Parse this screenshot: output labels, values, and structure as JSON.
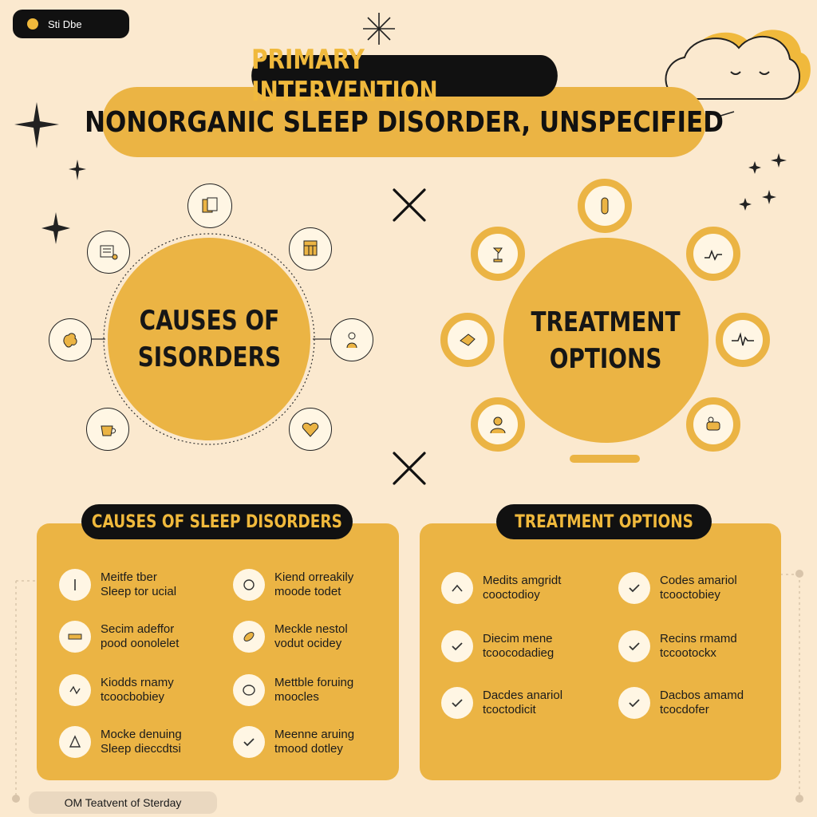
{
  "tag": {
    "label": "Sti Dbe"
  },
  "title": {
    "line1": "PRIMARY INTERVENTION",
    "line2": "NONORGANIC SLEEP DISORDER,  UNSPECIFIED"
  },
  "causes_circle": {
    "line1": "CAUSES OF",
    "line2": "SISORDERS"
  },
  "treatment_circle": {
    "line1": "TREATMENT",
    "line2": "OPTIONS"
  },
  "causes_panel": {
    "title": "CAUSES OF SLEEP DISORDERS",
    "items": [
      {
        "icon": "pill-icon",
        "l1": "Meitfe tber",
        "l2": "Sleep tor ucial"
      },
      {
        "icon": "circle-icon",
        "l1": "Kiend orreakily",
        "l2": "moode todet"
      },
      {
        "icon": "bed-icon",
        "l1": "Secim adeffor",
        "l2": "pood oonolelet"
      },
      {
        "icon": "food-icon",
        "l1": "Meckle nestol",
        "l2": "vodut ocidey"
      },
      {
        "icon": "stress-icon",
        "l1": "Kiodds rnamy",
        "l2": "tcoocbobiey"
      },
      {
        "icon": "circle-icon",
        "l1": "Mettble foruing",
        "l2": "moocles"
      },
      {
        "icon": "warning-icon",
        "l1": "Mocke denuing",
        "l2": "Sleep dieccdtsi"
      },
      {
        "icon": "check-icon",
        "l1": "Meenne aruing",
        "l2": "tmood dotley"
      }
    ]
  },
  "treatment_panel": {
    "title": "TREATMENT OPTIONS",
    "items": [
      {
        "icon": "caret-icon",
        "l1": "Medits amgridt",
        "l2": "cooctodioy"
      },
      {
        "icon": "check-icon",
        "l1": "Codes amariol",
        "l2": "tcooctobiey"
      },
      {
        "icon": "check-icon",
        "l1": "Diecim mene",
        "l2": "tcoocodadieg"
      },
      {
        "icon": "check-icon",
        "l1": "Recins rmamd",
        "l2": "tccootockx"
      },
      {
        "icon": "check-icon",
        "l1": "Dacdes anariol",
        "l2": "tcoctodicit"
      },
      {
        "icon": "check-icon",
        "l1": "Dacbos amamd",
        "l2": "tcocdofer"
      }
    ]
  },
  "footer": {
    "label": "OM Teatvent of Sterday"
  },
  "colors": {
    "background": "#fbe9cf",
    "accent": "#ebb444",
    "dark": "#111111"
  }
}
